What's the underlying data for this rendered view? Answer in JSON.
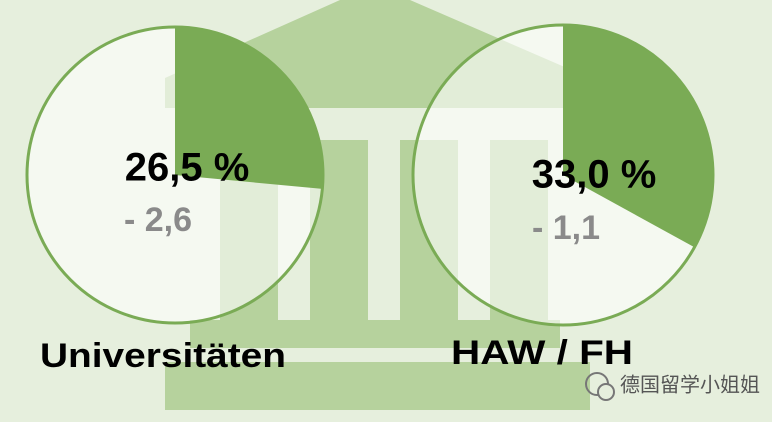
{
  "chart_data": [
    {
      "type": "pie",
      "title": "Universitäten",
      "values": [
        26.5
      ],
      "value_labels": [
        "26,5 %"
      ],
      "annotations": [
        "- 2,6"
      ],
      "color": "#7aab55"
    },
    {
      "type": "pie",
      "title": "HAW / FH",
      "values": [
        33.0
      ],
      "value_labels": [
        "33,0 %"
      ],
      "annotations": [
        "- 1,1"
      ],
      "color": "#7aab55"
    }
  ],
  "watermark": "德国留学小姐姐"
}
